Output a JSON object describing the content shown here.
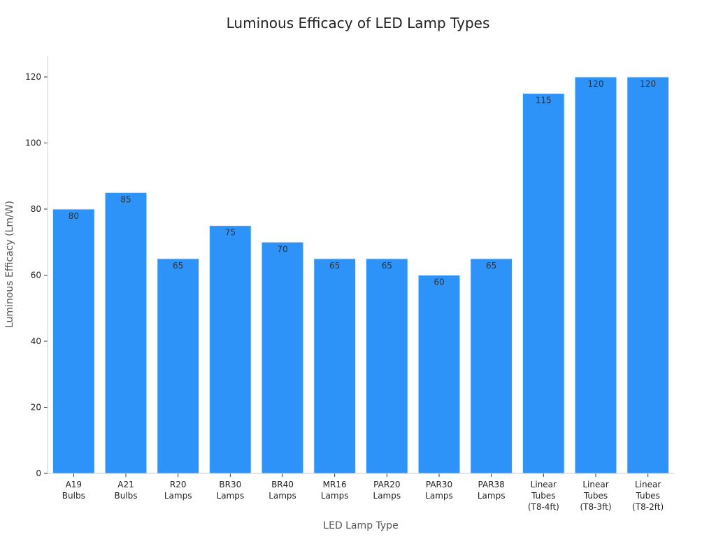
{
  "chart_data": {
    "type": "bar",
    "title": "Luminous Efficacy of LED Lamp Types",
    "xlabel": "LED Lamp Type",
    "ylabel": "Luminous Efficacy (Lm/W)",
    "ylim": [
      0,
      126
    ],
    "yticks": [
      0,
      20,
      40,
      60,
      80,
      100,
      120
    ],
    "categories": [
      [
        "A19",
        "Bulbs"
      ],
      [
        "A21",
        "Bulbs"
      ],
      [
        "R20",
        "Lamps"
      ],
      [
        "BR30",
        "Lamps"
      ],
      [
        "BR40",
        "Lamps"
      ],
      [
        "MR16",
        "Lamps"
      ],
      [
        "PAR20",
        "Lamps"
      ],
      [
        "PAR30",
        "Lamps"
      ],
      [
        "PAR38",
        "Lamps"
      ],
      [
        "Linear",
        "Tubes",
        "(T8-4ft)"
      ],
      [
        "Linear",
        "Tubes",
        "(T8-3ft)"
      ],
      [
        "Linear",
        "Tubes",
        "(T8-2ft)"
      ]
    ],
    "values": [
      80,
      85,
      65,
      75,
      70,
      65,
      65,
      60,
      65,
      115,
      120,
      120
    ],
    "bar_color": "#2e93f9",
    "grid": false,
    "legend": "none"
  }
}
